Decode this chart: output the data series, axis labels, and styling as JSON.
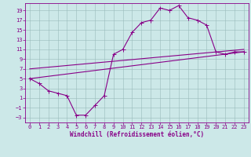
{
  "xlabel": "Windchill (Refroidissement éolien,°C)",
  "bg_color": "#cce8e8",
  "line_color": "#880088",
  "grid_color": "#99bbbb",
  "x_ticks": [
    0,
    1,
    2,
    3,
    4,
    5,
    6,
    7,
    8,
    9,
    10,
    11,
    12,
    13,
    14,
    15,
    16,
    17,
    18,
    19,
    20,
    21,
    22,
    23
  ],
  "y_ticks": [
    -3,
    -1,
    1,
    3,
    5,
    7,
    9,
    11,
    13,
    15,
    17,
    19
  ],
  "xlim": [
    -0.5,
    23.5
  ],
  "ylim": [
    -4.0,
    20.5
  ],
  "curve1_x": [
    0,
    1,
    2,
    3,
    4,
    5,
    6,
    7,
    8,
    9,
    10,
    11,
    12,
    13,
    14,
    15,
    16,
    17,
    18,
    19,
    20,
    21,
    22,
    23
  ],
  "curve1_y": [
    5,
    4,
    2.5,
    2,
    1.5,
    -2.5,
    -2.5,
    -0.5,
    1.5,
    10,
    11,
    14.5,
    16.5,
    17,
    19.5,
    19,
    20,
    17.5,
    17,
    16,
    10.5,
    10,
    10.5,
    10.5
  ],
  "curve2_x": [
    0,
    23
  ],
  "curve2_y": [
    5.0,
    10.5
  ],
  "curve3_x": [
    0,
    23
  ],
  "curve3_y": [
    7.0,
    11.0
  ],
  "tick_fontsize": 5.0,
  "xlabel_fontsize": 5.5,
  "marker_size": 1.8,
  "line_width": 0.8
}
